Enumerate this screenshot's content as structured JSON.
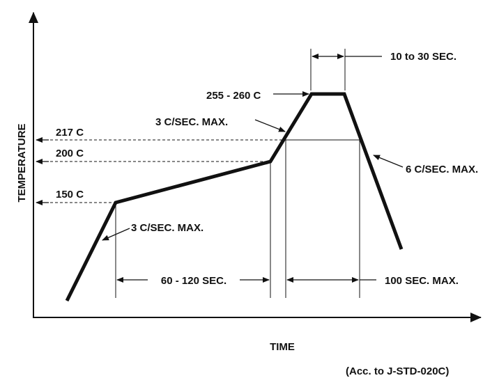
{
  "axes": {
    "y_label": "TEMPERATURE",
    "x_label": "TIME"
  },
  "temperatures": {
    "t217": "217 C",
    "t200": "200 C",
    "t150": "150 C",
    "peak": "255 - 260 C"
  },
  "rates": {
    "ramp_up_preheat": "3 C/SEC. MAX.",
    "ramp_up_reflow": "3 C/SEC. MAX.",
    "ramp_down": "6 C/SEC. MAX."
  },
  "durations": {
    "peak_time": "10 to 30 SEC.",
    "soak_time": "60 - 120 SEC.",
    "above_liquidus": "100 SEC. MAX."
  },
  "footnote": "(Acc. to J-STD-020C)",
  "colors": {
    "ink": "#111111",
    "background": "#ffffff"
  }
}
